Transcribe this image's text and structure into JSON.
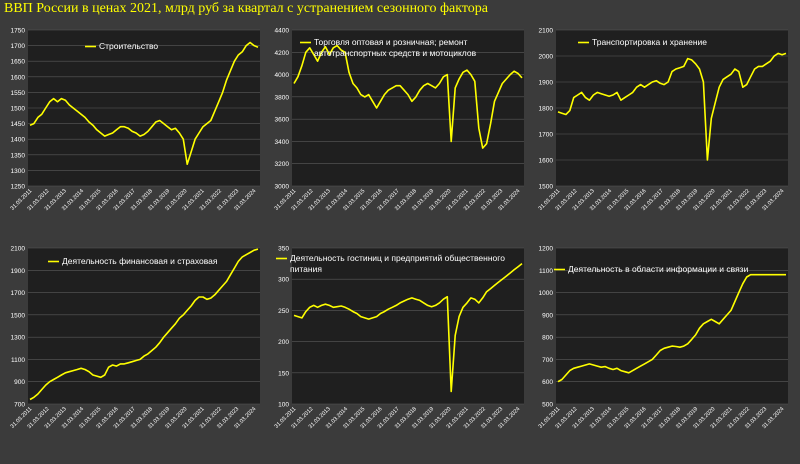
{
  "page_title": "ВВП России в ценах 2021, млрд руб за квартал с устранением сезонного фактора",
  "colors": {
    "background": "#3b3b3b",
    "plot": "#1f1f1f",
    "line": "#ffff00",
    "grid": "#5a5a5a"
  },
  "chart_data": [
    {
      "type": "line",
      "title": "Строительство",
      "legend": "top-left",
      "ylim": [
        1250,
        1750
      ],
      "yticks": [
        1250,
        1300,
        1350,
        1400,
        1450,
        1500,
        1550,
        1600,
        1650,
        1700,
        1750
      ],
      "xticks": [
        "31.03.2011",
        "31.03.2012",
        "31.03.2013",
        "31.03.2014",
        "31.03.2015",
        "31.03.2016",
        "31.03.2017",
        "31.03.2018",
        "31.03.2019",
        "31.03.2020",
        "31.03.2021",
        "31.03.2022",
        "31.03.2023",
        "31.03.2024"
      ],
      "series": [
        {
          "values": [
            1445,
            1450,
            1470,
            1480,
            1500,
            1520,
            1530,
            1520,
            1530,
            1525,
            1510,
            1500,
            1490,
            1480,
            1470,
            1455,
            1445,
            1430,
            1420,
            1410,
            1415,
            1420,
            1430,
            1440,
            1440,
            1435,
            1425,
            1420,
            1410,
            1415,
            1425,
            1440,
            1455,
            1460,
            1450,
            1440,
            1430,
            1435,
            1420,
            1400,
            1320,
            1360,
            1400,
            1420,
            1440,
            1450,
            1460,
            1490,
            1520,
            1550,
            1590,
            1620,
            1650,
            1670,
            1680,
            1700,
            1710,
            1700,
            1695
          ]
        }
      ]
    },
    {
      "type": "line",
      "title": "Торговля оптовая и розничная; ремонт автотранспортных средств и мотоциклов",
      "legend": "top-left",
      "ylim": [
        3000,
        4400
      ],
      "yticks": [
        3000,
        3200,
        3400,
        3600,
        3800,
        4000,
        4200,
        4400
      ],
      "xticks": [
        "31.03.2011",
        "31.03.2012",
        "31.03.2013",
        "31.03.2014",
        "31.03.2015",
        "31.03.2016",
        "31.03.2017",
        "31.03.2018",
        "31.03.2019",
        "31.03.2020",
        "31.03.2021",
        "31.03.2022",
        "31.03.2023",
        "31.03.2024"
      ],
      "series": [
        {
          "values": [
            3920,
            3980,
            4080,
            4200,
            4240,
            4180,
            4120,
            4200,
            4250,
            4180,
            4240,
            4260,
            4220,
            4200,
            4020,
            3920,
            3880,
            3820,
            3800,
            3820,
            3760,
            3700,
            3760,
            3820,
            3860,
            3880,
            3900,
            3900,
            3860,
            3820,
            3760,
            3800,
            3860,
            3900,
            3920,
            3900,
            3880,
            3920,
            3980,
            4000,
            3400,
            3880,
            3960,
            4020,
            4040,
            4000,
            3940,
            3520,
            3340,
            3380,
            3560,
            3760,
            3840,
            3920,
            3960,
            4000,
            4030,
            4010,
            3970
          ]
        }
      ]
    },
    {
      "type": "line",
      "title": "Транспортировка и хранение",
      "legend": "top-left",
      "ylim": [
        1500,
        2100
      ],
      "yticks": [
        1500,
        1600,
        1700,
        1800,
        1900,
        2000,
        2100
      ],
      "xticks": [
        "31.03.2011",
        "31.03.2012",
        "31.03.2013",
        "31.03.2014",
        "31.03.2015",
        "31.03.2016",
        "31.03.2017",
        "31.03.2018",
        "31.03.2019",
        "31.03.2020",
        "31.03.2021",
        "31.03.2022",
        "31.03.2023",
        "31.03.2024"
      ],
      "series": [
        {
          "values": [
            1785,
            1780,
            1775,
            1790,
            1840,
            1850,
            1860,
            1840,
            1830,
            1850,
            1860,
            1855,
            1850,
            1845,
            1850,
            1860,
            1830,
            1840,
            1850,
            1860,
            1880,
            1890,
            1880,
            1890,
            1900,
            1905,
            1895,
            1890,
            1900,
            1940,
            1950,
            1955,
            1960,
            1990,
            1985,
            1970,
            1950,
            1900,
            1600,
            1760,
            1820,
            1880,
            1910,
            1920,
            1930,
            1950,
            1940,
            1880,
            1890,
            1920,
            1950,
            1960,
            1960,
            1970,
            1980,
            2000,
            2010,
            2005,
            2010
          ]
        }
      ]
    },
    {
      "type": "line",
      "title": "Деятельность финансовая и страховая",
      "legend": "top-left",
      "ylim": [
        700,
        2100
      ],
      "yticks": [
        700,
        900,
        1100,
        1300,
        1500,
        1700,
        1900,
        2100
      ],
      "xticks": [
        "31.03.2011",
        "31.03.2012",
        "31.03.2013",
        "31.03.2014",
        "31.03.2015",
        "31.03.2016",
        "31.03.2017",
        "31.03.2018",
        "31.03.2019",
        "31.03.2020",
        "31.03.2021",
        "31.03.2022",
        "31.03.2023",
        "31.03.2024"
      ],
      "series": [
        {
          "values": [
            740,
            760,
            790,
            830,
            870,
            900,
            920,
            940,
            960,
            980,
            990,
            1000,
            1010,
            1020,
            1010,
            990,
            960,
            950,
            940,
            960,
            1030,
            1050,
            1040,
            1060,
            1060,
            1070,
            1080,
            1090,
            1100,
            1130,
            1150,
            1180,
            1210,
            1250,
            1300,
            1340,
            1380,
            1420,
            1470,
            1500,
            1540,
            1580,
            1630,
            1660,
            1660,
            1640,
            1650,
            1680,
            1720,
            1760,
            1800,
            1860,
            1920,
            1980,
            2020,
            2040,
            2060,
            2080,
            2090
          ]
        }
      ]
    },
    {
      "type": "line",
      "title": "Деятельность гостиниц и предприятий общественного питания",
      "legend": "top-left",
      "ylim": [
        100,
        350
      ],
      "yticks": [
        100,
        150,
        200,
        250,
        300,
        350
      ],
      "xticks": [
        "31.03.2011",
        "31.03.2012",
        "31.03.2013",
        "31.03.2014",
        "31.03.2015",
        "31.03.2016",
        "31.03.2017",
        "31.03.2018",
        "31.03.2019",
        "31.03.2020",
        "31.03.2021",
        "31.03.2022",
        "31.03.2023",
        "31.03.2024"
      ],
      "series": [
        {
          "values": [
            242,
            240,
            238,
            248,
            255,
            258,
            255,
            258,
            260,
            258,
            255,
            256,
            257,
            255,
            252,
            248,
            245,
            240,
            238,
            236,
            238,
            240,
            245,
            248,
            252,
            255,
            258,
            262,
            265,
            268,
            270,
            268,
            266,
            262,
            258,
            256,
            258,
            262,
            268,
            272,
            120,
            210,
            240,
            255,
            262,
            270,
            268,
            262,
            270,
            280,
            285,
            290,
            295,
            300,
            305,
            310,
            315,
            320,
            325
          ]
        }
      ]
    },
    {
      "type": "line",
      "title": "Деятельность в области информации и связи",
      "legend": "top-left",
      "ylim": [
        500,
        1200
      ],
      "yticks": [
        500,
        600,
        700,
        800,
        900,
        1000,
        1100,
        1200
      ],
      "xticks": [
        "31.03.2011",
        "31.03.2012",
        "31.03.2013",
        "31.03.2014",
        "31.03.2015",
        "31.03.2016",
        "31.03.2017",
        "31.03.2018",
        "31.03.2019",
        "31.03.2020",
        "31.03.2021",
        "31.03.2022",
        "31.03.2023",
        "31.03.2024"
      ],
      "series": [
        {
          "values": [
            600,
            610,
            630,
            650,
            660,
            665,
            670,
            675,
            680,
            675,
            670,
            665,
            668,
            660,
            655,
            660,
            650,
            645,
            640,
            650,
            660,
            670,
            680,
            690,
            700,
            720,
            740,
            750,
            755,
            760,
            758,
            755,
            760,
            770,
            790,
            810,
            840,
            860,
            870,
            880,
            870,
            860,
            880,
            900,
            920,
            960,
            1000,
            1040,
            1070,
            1080,
            1080,
            1080,
            1080,
            1080,
            1080,
            1080,
            1080,
            1080,
            1080
          ]
        }
      ]
    }
  ]
}
